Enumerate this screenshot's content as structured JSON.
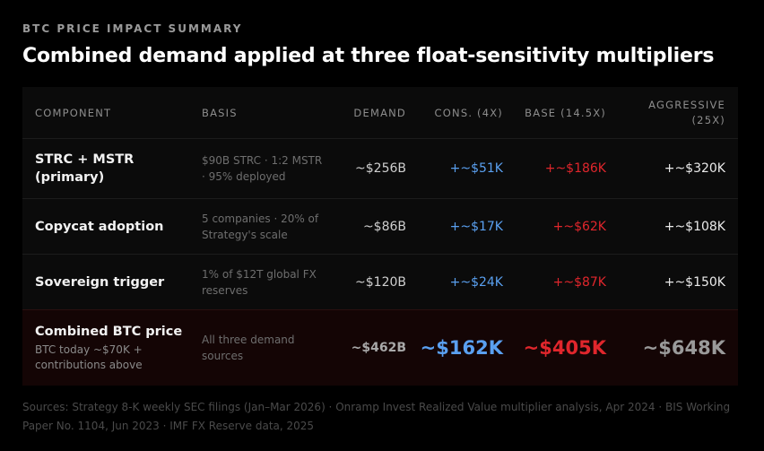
{
  "header": {
    "eyebrow": "BTC PRICE IMPACT SUMMARY",
    "title": "Combined demand applied at three float-sensitivity multipliers"
  },
  "table": {
    "columns": {
      "component": "COMPONENT",
      "basis": "BASIS",
      "demand": "DEMAND",
      "cons": "CONS. (4X)",
      "base": "BASE (14.5X)",
      "aggressive_1": "AGGRESSIVE",
      "aggressive_2": "(25X)"
    },
    "rows": [
      {
        "component": "STRC + MSTR (primary)",
        "basis": "$90B STRC · 1:2 MSTR · 95% deployed",
        "demand": "~$256B",
        "cons": "+~$51K",
        "base": "+~$186K",
        "aggressive": "+~$320K"
      },
      {
        "component": "Copycat adoption",
        "basis": "5 companies · 20% of Strategy's scale",
        "demand": "~$86B",
        "cons": "+~$17K",
        "base": "+~$62K",
        "aggressive": "+~$108K"
      },
      {
        "component": "Sovereign trigger",
        "basis": "1% of $12T global FX reserves",
        "demand": "~$120B",
        "cons": "+~$24K",
        "base": "+~$87K",
        "aggressive": "+~$150K"
      }
    ],
    "total": {
      "component": "Combined BTC price",
      "sub": "BTC today ~$70K + contributions above",
      "basis": "All three demand sources",
      "demand": "~$462B",
      "cons": "~$162K",
      "base": "~$405K",
      "aggressive": "~$648K"
    }
  },
  "footer": {
    "sources": "Sources: Strategy 8-K weekly SEC filings (Jan–Mar 2026) · Onramp Invest Realized Value multiplier analysis, Apr 2024 · BIS Working Paper No. 1104, Jun 2023 · IMF FX Reserve data, 2025"
  },
  "colors": {
    "background": "#000000",
    "cons": "#5aa0f0",
    "base": "#e0262c",
    "aggressive": "#eaeaea",
    "total_row_bg": "#140505"
  }
}
